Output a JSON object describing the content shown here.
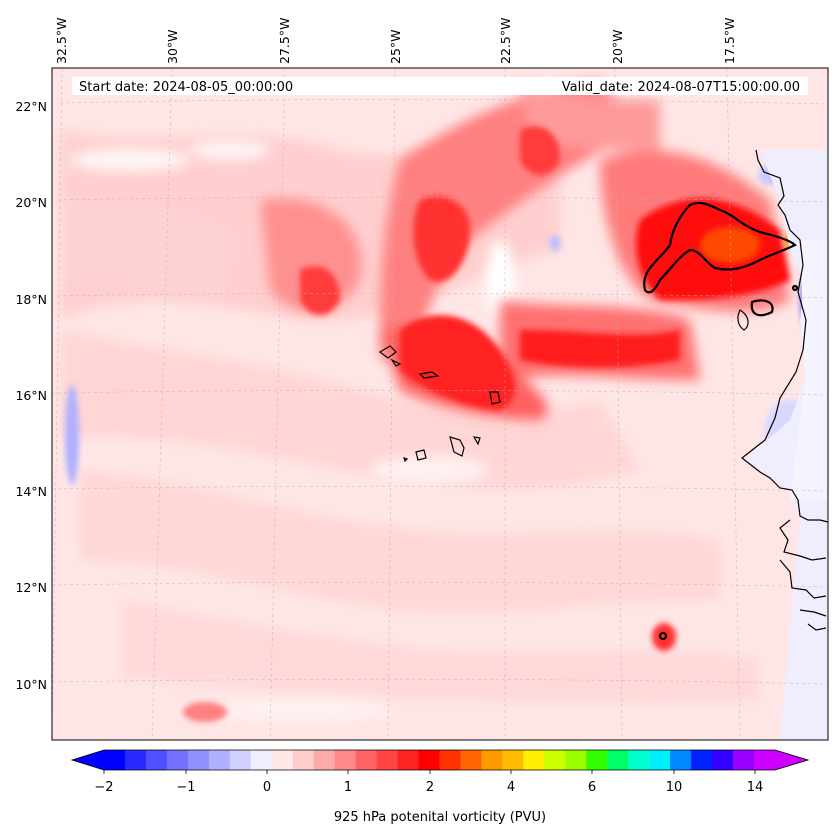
{
  "header": {
    "start_date": "Start date: 2024-08-05_00:00:00",
    "valid_date": "Valid_date: 2024-08-07T15:00:00.00"
  },
  "map": {
    "lon_labels": [
      "32.5°W",
      "30°W",
      "27.5°W",
      "25°W",
      "22.5°W",
      "20°W",
      "17.5°W"
    ],
    "lat_labels": [
      "22°N",
      "20°N",
      "18°N",
      "16°N",
      "14°N",
      "12°N",
      "10°N"
    ],
    "gridlines": true,
    "coastline_color": "#000000"
  },
  "colorbar": {
    "label": "925 hPa potenital vorticity (PVU)",
    "tick_labels": [
      "−2",
      "−1",
      "0",
      "1",
      "2",
      "4",
      "6",
      "10",
      "14"
    ],
    "extend": "both",
    "colors": [
      "#0000ff",
      "#2a2aff",
      "#5050ff",
      "#7373ff",
      "#9090ff",
      "#b0b0ff",
      "#d0d0ff",
      "#eeeeff",
      "#ffe8e8",
      "#ffcccc",
      "#ffaaaa",
      "#ff8888",
      "#ff6464",
      "#ff4444",
      "#ff2222",
      "#ff0000",
      "#ff3300",
      "#ff6600",
      "#ff9900",
      "#ffbb00",
      "#ffee00",
      "#ccff00",
      "#99ff00",
      "#33ff00",
      "#00ff66",
      "#00ffcc",
      "#00eeff",
      "#0088ff",
      "#0022ff",
      "#3300ff",
      "#9900ff",
      "#cc00ff"
    ],
    "under_color": "#0000ff",
    "over_color": "#cc00ff"
  }
}
